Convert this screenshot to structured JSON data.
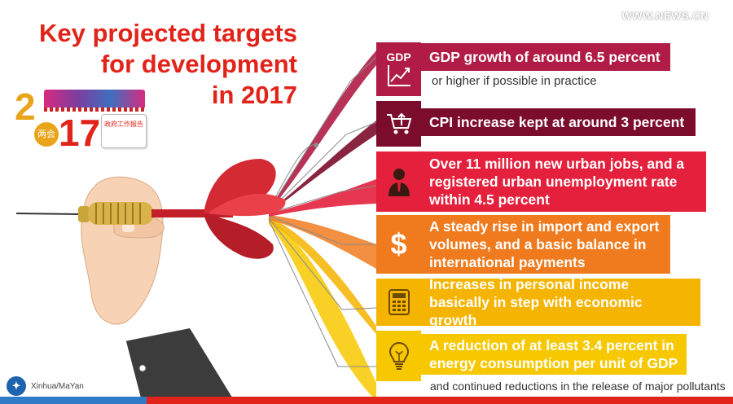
{
  "watermark": "WWW.NEWS.CN",
  "title": {
    "line1": "Key projected targets",
    "line2": "for development",
    "line3": "in 2017"
  },
  "logo": {
    "digit_2": "2",
    "digits_17": "17",
    "circle_text": "两会",
    "report_text": "政府工作报告"
  },
  "credit": "Xinhua/MaYan",
  "targets": [
    {
      "icon": "gdp-chart-icon",
      "icon_label": "GDP",
      "color": "#b01c45",
      "text": "GDP growth of around 6.5 percent",
      "note": "or higher if possible in practice"
    },
    {
      "icon": "shopping-cart-icon",
      "color": "#7c0c2c",
      "text": "CPI increase kept at around 3 percent"
    },
    {
      "icon": "worker-icon",
      "color": "#e4203c",
      "text": "Over 11 million new urban jobs, and a registered  urban unemployment rate within 4.5 percent"
    },
    {
      "icon": "dollar-icon",
      "icon_label": "$",
      "color": "#f07b1e",
      "text": "A steady rise in import and export volumes, and a basic balance in international payments"
    },
    {
      "icon": "calculator-icon",
      "color": "#f5b400",
      "text": "Increases in personal income basically in step with economic growth"
    },
    {
      "icon": "lightbulb-icon",
      "color": "#f7c800",
      "text": "A reduction of at least 3.4 percent in energy consumption per unit of GDP",
      "note": "and continued reductions in the release of major pollutants"
    }
  ]
}
